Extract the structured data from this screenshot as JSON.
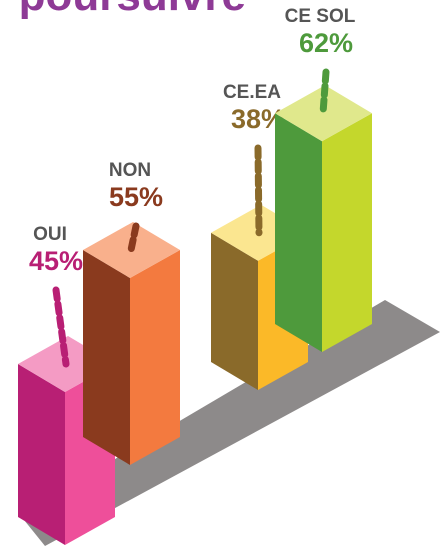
{
  "chart_data": {
    "type": "bar3d",
    "title": "r poursuivre",
    "categories": [
      "OUI",
      "NON",
      "CE.EA",
      "CE SOL"
    ],
    "values": [
      45,
      55,
      38,
      62
    ],
    "value_labels": [
      "45%",
      "55%",
      "38%",
      "62%"
    ],
    "colors": [
      "#b81f74",
      "#8a3a1e",
      "#8a6a2a",
      "#4e9a3c"
    ],
    "side_colors": [
      "#ee4f9a",
      "#f37a3f",
      "#fbb928",
      "#c4d72c"
    ],
    "top_colors": [
      "#f49bc4",
      "#f9b08c",
      "#fbe690",
      "#e0e88c"
    ]
  }
}
